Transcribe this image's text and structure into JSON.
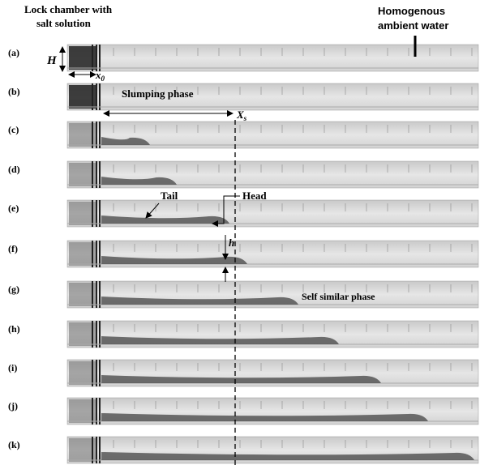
{
  "header": {
    "lock_chamber": [
      "Lock chamber with",
      "salt solution"
    ],
    "ambient": [
      "Homogenous",
      "ambient water"
    ]
  },
  "panels": [
    "(a)",
    "(b)",
    "(c)",
    "(d)",
    "(e)",
    "(f)",
    "(g)",
    "(h)",
    "(i)",
    "(j)",
    "(k)"
  ],
  "annotations": {
    "H": "H",
    "x0": {
      "base": "x",
      "sub": "0"
    },
    "slumping": "Slumping phase",
    "xs": {
      "base": "X",
      "sub": "s"
    },
    "tail": "Tail",
    "head": "Head",
    "h": "h",
    "self_similar": "Self similar phase"
  }
}
